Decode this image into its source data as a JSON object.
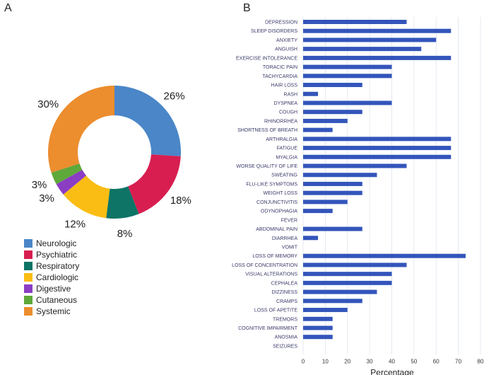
{
  "figure": {
    "panel_a_label": "A",
    "panel_b_label": "B"
  },
  "chart_data": [
    {
      "type": "pie",
      "donut": true,
      "series": [
        {
          "name": "Neurologic",
          "value": 26,
          "label": "26%",
          "color": "#4a86c8"
        },
        {
          "name": "Psychiatric",
          "value": 18,
          "label": "18%",
          "color": "#d81e50"
        },
        {
          "name": "Respiratory",
          "value": 8,
          "label": "8%",
          "color": "#0d7466"
        },
        {
          "name": "Cardiologic",
          "value": 12,
          "label": "12%",
          "color": "#f9bd13"
        },
        {
          "name": "Digestive",
          "value": 3,
          "label": "3%",
          "color": "#8b3dc4"
        },
        {
          "name": "Cutaneous",
          "value": 3,
          "label": "3%",
          "color": "#5fa83a"
        },
        {
          "name": "Systemic",
          "value": 30,
          "label": "30%",
          "color": "#ec8d2e"
        }
      ],
      "legend_placement": "bottom-left"
    },
    {
      "type": "bar",
      "orientation": "horizontal",
      "categories": [
        "DEPRESSION",
        "SLEEP DISORDERS",
        "ANXIETY",
        "ANGUISH",
        "EXERCISE INTOLERANCE",
        "TORACIC PAIN",
        "TACHYCARDIA",
        "HAIR LOSS",
        "RASH",
        "DYSPNEA",
        "COUGH",
        "RHINORRHEA",
        "SHORTNESS OF BREATH",
        "ARTHRALGIA",
        "FATIGUE",
        "MYALGIA",
        "WORSE QUALITY OF LIFE",
        "SWEATING",
        "FLU-LIKE SYMPTOMS",
        "WEIGHT LOSS",
        "CONJUNCTIVITIS",
        "ODYNOPHAGIA",
        "FEVER",
        "ABDOMINAL PAIN",
        "DIARRHEA",
        "VOMIT",
        "LOSS OF MEMORY",
        "LOSS OF CONCENTRATION",
        "VISUAL ALTERATIONS",
        "CEPHALEA",
        "DIZZINESS",
        "CRAMPS",
        "LOSS OF APETITE",
        "TREMORS",
        "COGNITIVE IMPAIRMENT",
        "ANOSMIA",
        "SEIZURES"
      ],
      "values": [
        46.7,
        66.7,
        60,
        53.3,
        66.7,
        40,
        40,
        26.7,
        6.7,
        40,
        26.7,
        20,
        13.3,
        66.7,
        66.7,
        66.7,
        46.7,
        33.3,
        26.7,
        26.7,
        20,
        13.3,
        0,
        26.7,
        6.7,
        0,
        73.3,
        46.7,
        40,
        40,
        33.3,
        26.7,
        20,
        13.3,
        13.3,
        13.3,
        0
      ],
      "xlabel": "Percentage",
      "ylabel": "",
      "xlim": [
        0,
        80
      ],
      "xticks": [
        0,
        10,
        20,
        30,
        40,
        50,
        60,
        70,
        80
      ],
      "grid": "vertical",
      "bar_color": "#3355bb"
    }
  ]
}
